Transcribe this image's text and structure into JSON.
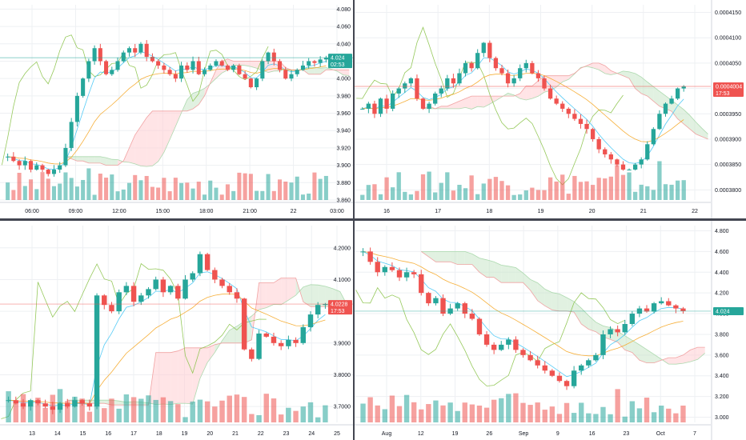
{
  "colors": {
    "up": "#26a69a",
    "down": "#ef5350",
    "cloud_up": "#c8e6c9",
    "cloud_down": "#ffcdd2",
    "fast_ma": "#42c5f5",
    "slow_ma": "#f5a623",
    "lagging_span": "#8bc34a",
    "grid": "#eef0f3",
    "axis_text": "#131722",
    "price_line_teal": "#26a69a",
    "price_line_red": "#ef5350"
  },
  "chart_data": [
    {
      "type": "candlestick",
      "pane": "top-left",
      "x_ticks": [
        "06:00",
        "09:00",
        "12:00",
        "15:00",
        "18:00",
        "21:00",
        "22",
        "03:00"
      ],
      "y_ticks": [
        "4.080",
        "4.060",
        "4.040",
        "4.020",
        "4.000",
        "3.980",
        "3.960",
        "3.940",
        "3.920",
        "3.900",
        "3.880",
        "3.860"
      ],
      "ylim": [
        3.86,
        4.085
      ],
      "last_price": "4.024",
      "countdown": "02:53",
      "price_line_color": "teal",
      "close": [
        3.91,
        3.905,
        3.9,
        3.905,
        3.895,
        3.9,
        3.895,
        3.89,
        3.895,
        3.9,
        3.92,
        3.95,
        3.98,
        4.0,
        4.02,
        4.035,
        4.02,
        4.005,
        4.01,
        4.02,
        4.03,
        4.035,
        4.03,
        4.04,
        4.025,
        4.02,
        4.015,
        4.01,
        4.005,
        4.0,
        4.015,
        4.01,
        4.02,
        4.005,
        4.01,
        4.015,
        4.02,
        4.015,
        4.01,
        4.015,
        4.005,
        4.0,
        3.99,
        4.0,
        4.02,
        4.03,
        4.02,
        4.01,
        4.0,
        4.005,
        4.01,
        4.015,
        4.02,
        4.018,
        4.022,
        4.024
      ]
    },
    {
      "type": "candlestick",
      "pane": "top-right",
      "x_ticks": [
        "16",
        "17",
        "18",
        "19",
        "20",
        "21",
        "22"
      ],
      "y_ticks": [
        "0.0004150",
        "0.0004100",
        "0.0004050",
        "0.0004000",
        "0.0003950",
        "0.0003900",
        "0.0003850",
        "0.0003800"
      ],
      "ylim": [
        0.000378,
        0.0004165
      ],
      "last_price": "0.0004004",
      "countdown": "17:53",
      "price_line_color": "red",
      "close": [
        0.000396,
        0.000397,
        0.000395,
        0.000398,
        0.000396,
        0.000399,
        0.0004,
        0.000401,
        0.000402,
        0.000398,
        0.000396,
        0.000397,
        0.000399,
        0.0004,
        0.000402,
        0.000401,
        0.000403,
        0.000405,
        0.000404,
        0.000407,
        0.000409,
        0.000406,
        0.000404,
        0.000403,
        0.000401,
        0.000402,
        0.000404,
        0.000405,
        0.000403,
        0.000402,
        0.0004,
        0.000398,
        0.000397,
        0.000396,
        0.000395,
        0.000394,
        0.000393,
        0.000392,
        0.00039,
        0.000388,
        0.000387,
        0.000386,
        0.000385,
        0.000384,
        0.000384,
        0.000385,
        0.000386,
        0.000389,
        0.000392,
        0.000395,
        0.000397,
        0.000398,
        0.0004,
        0.0004004
      ]
    },
    {
      "type": "candlestick",
      "pane": "bottom-left",
      "x_ticks": [
        "13",
        "14",
        "15",
        "16",
        "17",
        "18",
        "19",
        "20",
        "21",
        "22",
        "23",
        "24",
        "25"
      ],
      "y_ticks": [
        "4.2000",
        "4.1000",
        "4.0000",
        "3.9000",
        "3.8000",
        "3.7000"
      ],
      "ylim": [
        3.65,
        4.27
      ],
      "last_price": "4.0228",
      "countdown": "17:53",
      "price_line_color": "red",
      "close": [
        3.72,
        3.71,
        3.7,
        3.72,
        3.71,
        3.7,
        3.69,
        3.71,
        3.7,
        3.72,
        3.71,
        3.7,
        4.05,
        4.02,
        4.0,
        4.06,
        4.08,
        4.03,
        4.05,
        4.07,
        4.1,
        4.06,
        4.08,
        4.04,
        4.1,
        4.12,
        4.18,
        4.13,
        4.1,
        4.08,
        4.06,
        4.04,
        3.88,
        3.85,
        3.93,
        3.92,
        3.9,
        3.89,
        3.91,
        3.9,
        3.95,
        3.99,
        4.02,
        4.0228
      ]
    },
    {
      "type": "candlestick",
      "pane": "bottom-right",
      "x_ticks": [
        "Aug",
        "12",
        "19",
        "26",
        "Sep",
        "9",
        "16",
        "23",
        "Oct",
        "7"
      ],
      "y_ticks": [
        "4.800",
        "4.600",
        "4.400",
        "4.200",
        "4.000",
        "3.800",
        "3.600",
        "3.400",
        "3.200",
        "3.000"
      ],
      "ylim": [
        2.95,
        4.85
      ],
      "last_price": "4.024",
      "price_line_color": "teal",
      "close": [
        4.6,
        4.5,
        4.4,
        4.45,
        4.42,
        4.35,
        4.4,
        4.38,
        4.2,
        4.1,
        4.15,
        4.0,
        4.05,
        4.1,
        4.0,
        3.95,
        3.8,
        3.7,
        3.65,
        3.7,
        3.75,
        3.65,
        3.6,
        3.55,
        3.5,
        3.45,
        3.4,
        3.35,
        3.3,
        3.45,
        3.5,
        3.55,
        3.6,
        3.8,
        3.85,
        3.82,
        3.9,
        4.0,
        4.05,
        4.02,
        4.1,
        4.12,
        4.08,
        4.05,
        4.024
      ]
    }
  ]
}
